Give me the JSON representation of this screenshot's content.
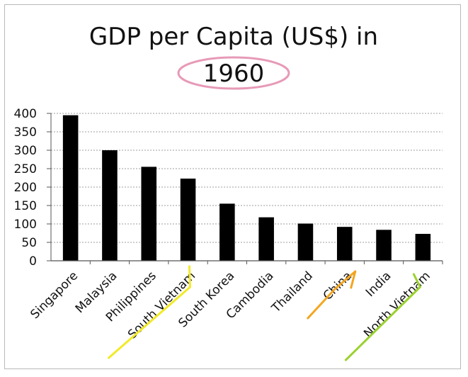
{
  "chart_data": {
    "type": "bar",
    "title": "GDP per Capita (US$) in",
    "subtitle": "1960",
    "xlabel": "",
    "ylabel": "",
    "categories": [
      "Singapore",
      "Malaysia",
      "Philippines",
      "South Vietnam",
      "South Korea",
      "Cambodia",
      "Thailand",
      "China",
      "India",
      "North Vietnam"
    ],
    "values": [
      395,
      300,
      255,
      223,
      155,
      118,
      101,
      92,
      84,
      73
    ],
    "ylim": [
      0,
      400
    ],
    "yticks": [
      "0",
      "50",
      "100",
      "150",
      "200",
      "250",
      "300",
      "350",
      "400"
    ],
    "grid": true,
    "legend": "none",
    "bar_color": "#000000",
    "annotations": {
      "subtitle_circle_color": "#e79ab7",
      "highlight_lines": [
        {
          "category": "South Vietnam",
          "color": "#f2ea28"
        },
        {
          "category": "China",
          "color": "#f3a51f"
        },
        {
          "category": "North Vietnam",
          "color": "#9bd12f"
        }
      ]
    }
  }
}
